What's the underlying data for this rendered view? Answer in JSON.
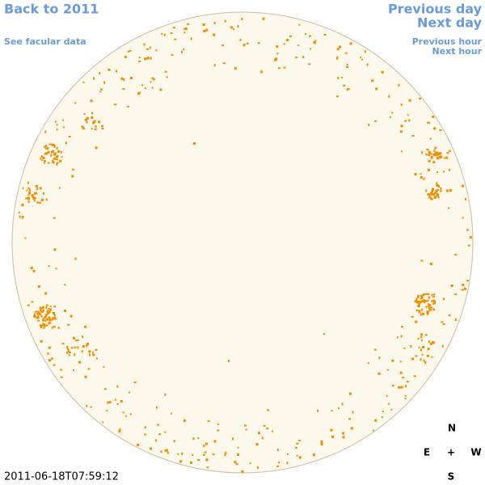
{
  "navigation": {
    "back": "Back to 2011",
    "facular": "See facular data",
    "previous_day": "Previous day",
    "next_day": "Next day",
    "previous_hour": "Previous hour",
    "next_hour": "Next hour"
  },
  "timestamp": "2011-06-18T07:59:12",
  "compass": {
    "north": "N",
    "east": "E",
    "center": "+",
    "west": "W",
    "south": "S"
  }
}
